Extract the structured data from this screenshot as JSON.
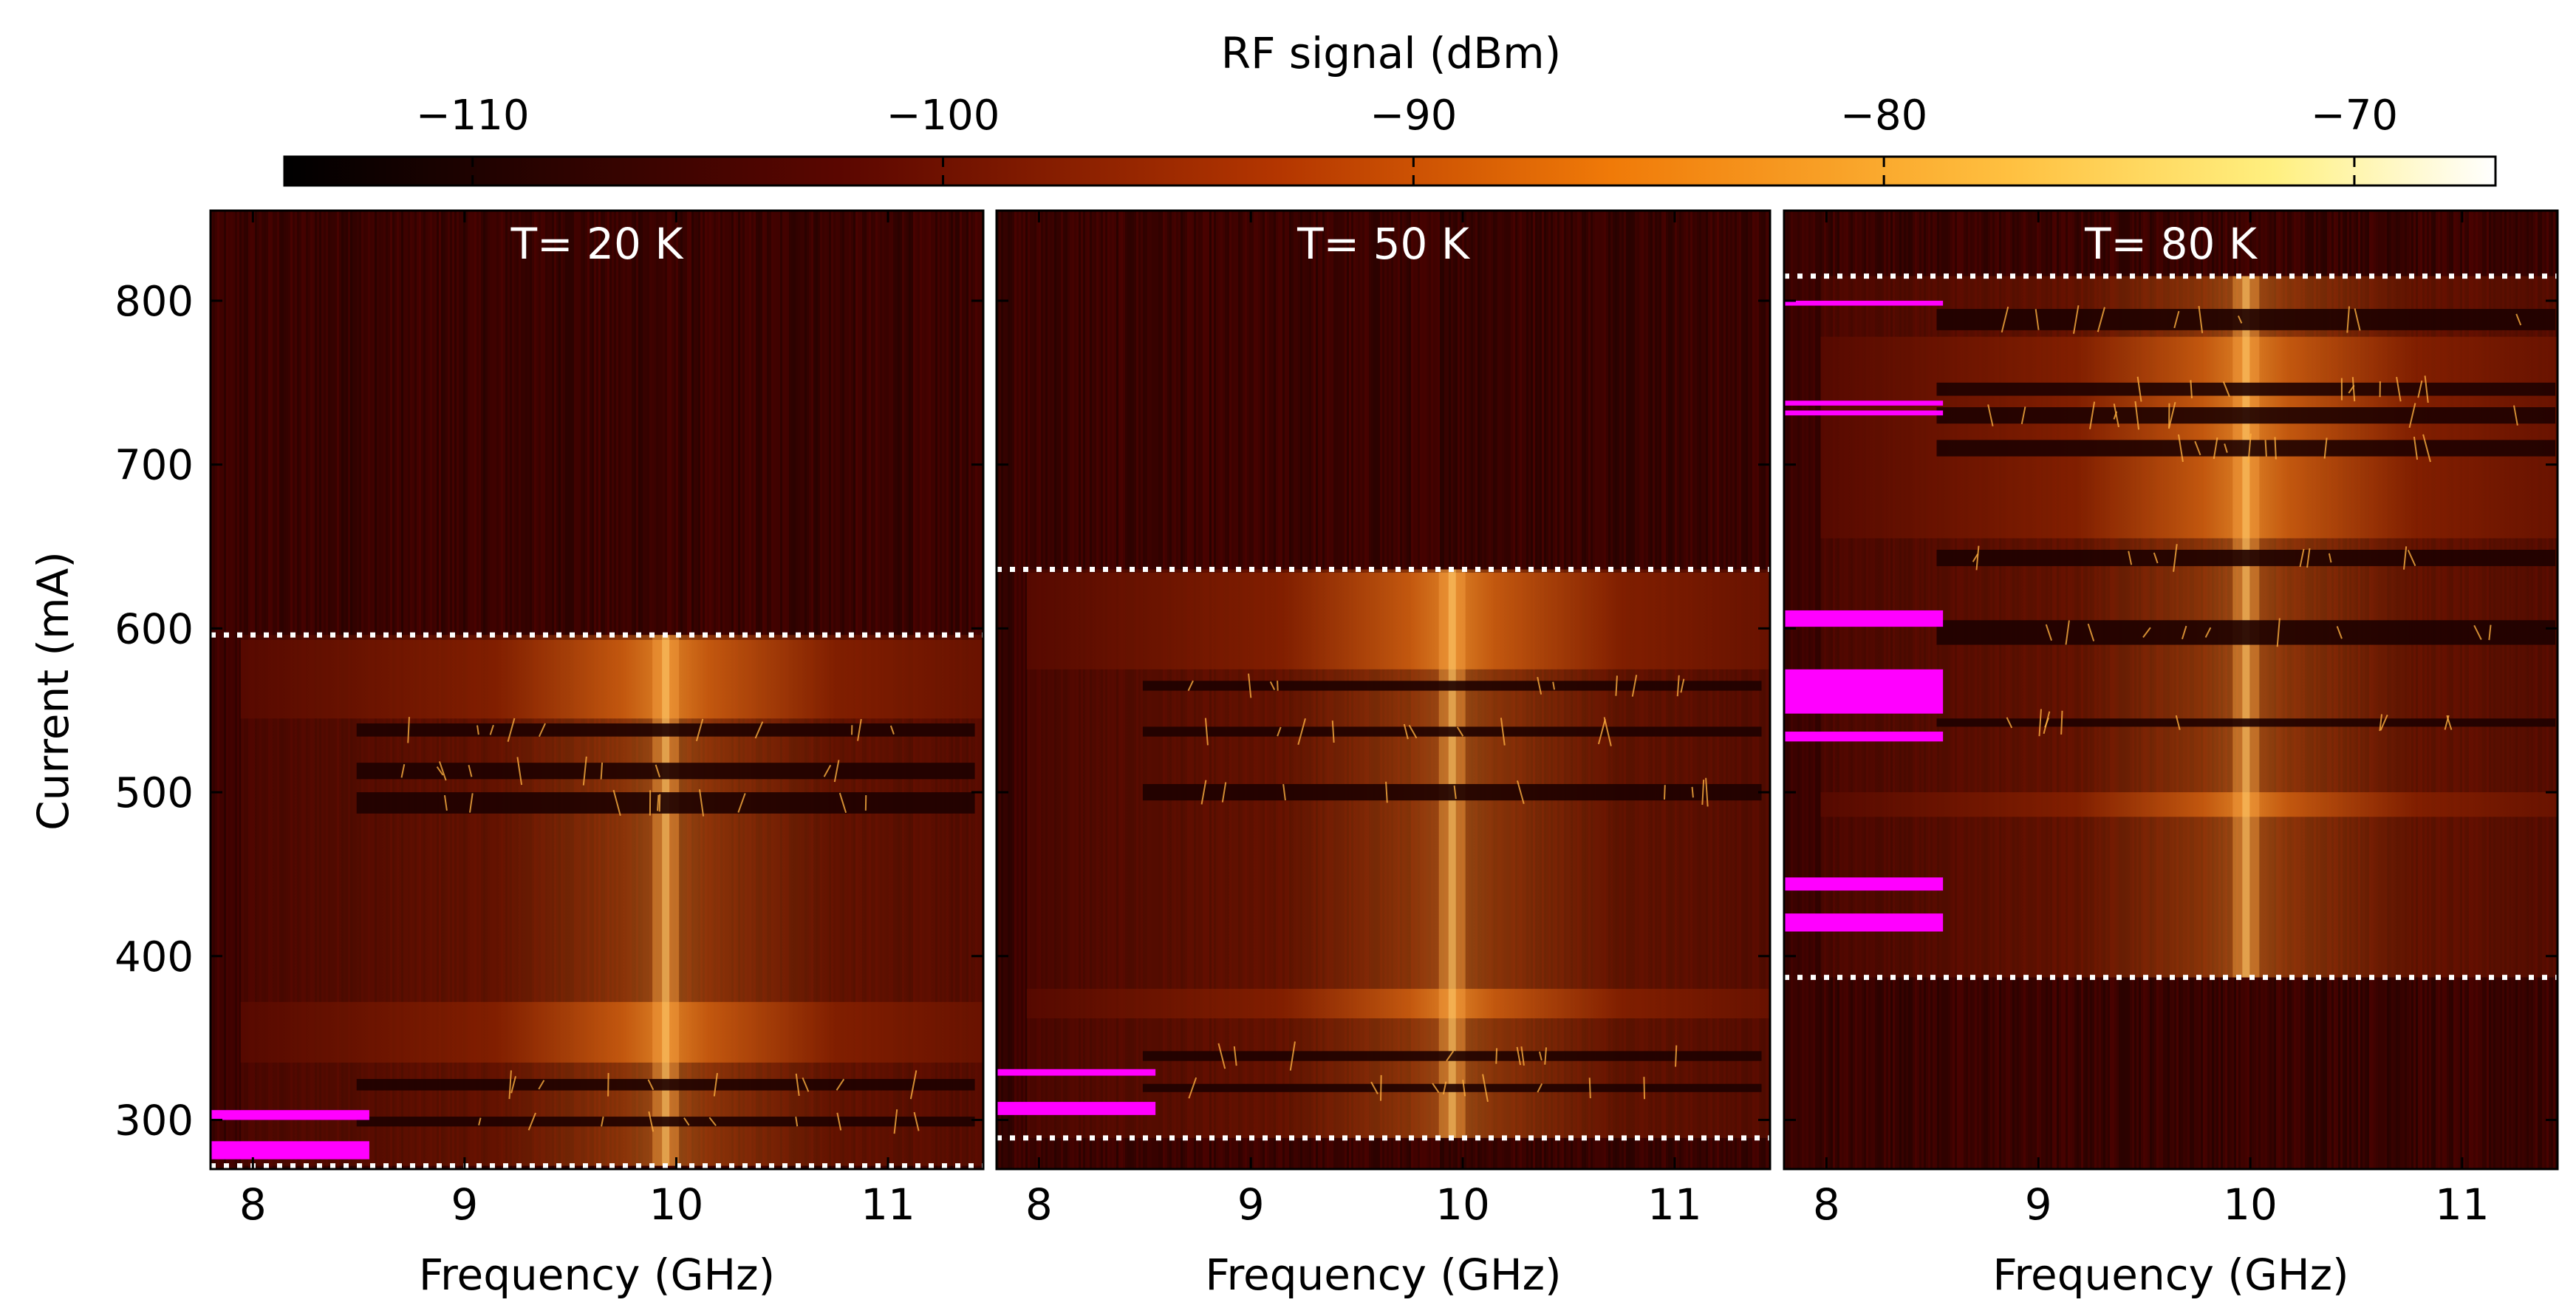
{
  "chart_data": {
    "type": "heatmap",
    "figure_description_free": true,
    "colorbar": {
      "label": "RF signal (dBm)",
      "range": [
        -114,
        -67
      ],
      "ticks": [
        -110,
        -100,
        -90,
        -80,
        -70
      ],
      "tick_labels": [
        "−110",
        "−100",
        "−90",
        "−80",
        "−70"
      ],
      "colormap": "afmhot"
    },
    "x_axis": {
      "label": "Frequency (GHz)",
      "range": [
        7.8,
        11.45
      ],
      "ticks": [
        8,
        9,
        10,
        11
      ],
      "tick_labels": [
        "8",
        "9",
        "10",
        "11"
      ]
    },
    "y_axis": {
      "label": "Current (mA)",
      "range": [
        270,
        855
      ],
      "ticks": [
        300,
        400,
        500,
        600,
        700,
        800
      ],
      "tick_labels": [
        "300",
        "400",
        "500",
        "600",
        "700",
        "800"
      ]
    },
    "panels": [
      {
        "title": "T= 20 K",
        "dotted_lines_mA": [
          272,
          596
        ],
        "active_top_mA": 596,
        "active_bottom_mA": 272,
        "center_freq_GHz": 9.95,
        "bright_bands_mA": [
          [
            545,
            593
          ],
          [
            335,
            372
          ]
        ],
        "dark_gaps_mA": [
          [
            534,
            542
          ],
          [
            508,
            518
          ],
          [
            487,
            500
          ],
          [
            318,
            325
          ],
          [
            296,
            302
          ]
        ],
        "magenta_bars_mA": [
          [
            300,
            306
          ],
          [
            276,
            287
          ]
        ]
      },
      {
        "title": "T= 50 K",
        "dotted_lines_mA": [
          289,
          636
        ],
        "active_top_mA": 636,
        "active_bottom_mA": 289,
        "center_freq_GHz": 9.95,
        "bright_bands_mA": [
          [
            575,
            634
          ],
          [
            362,
            380
          ]
        ],
        "dark_gaps_mA": [
          [
            562,
            568
          ],
          [
            534,
            540
          ],
          [
            495,
            505
          ],
          [
            336,
            342
          ],
          [
            317,
            322
          ]
        ],
        "magenta_bars_mA": [
          [
            327,
            331
          ],
          [
            303,
            311
          ]
        ]
      },
      {
        "title": "T= 80 K",
        "dotted_lines_mA": [
          387,
          815
        ],
        "active_top_mA": 815,
        "active_bottom_mA": 387,
        "center_freq_GHz": 9.98,
        "bright_bands_mA": [
          [
            655,
            778
          ],
          [
            485,
            500
          ]
        ],
        "dark_gaps_mA": [
          [
            782,
            795
          ],
          [
            742,
            750
          ],
          [
            725,
            735
          ],
          [
            705,
            715
          ],
          [
            638,
            648
          ],
          [
            590,
            605
          ],
          [
            540,
            545
          ]
        ],
        "magenta_bars_mA": [
          [
            797,
            800
          ],
          [
            736,
            739
          ],
          [
            730,
            733
          ],
          [
            601,
            611
          ],
          [
            548,
            575
          ],
          [
            531,
            537
          ],
          [
            440,
            448
          ],
          [
            415,
            426
          ]
        ]
      }
    ]
  }
}
